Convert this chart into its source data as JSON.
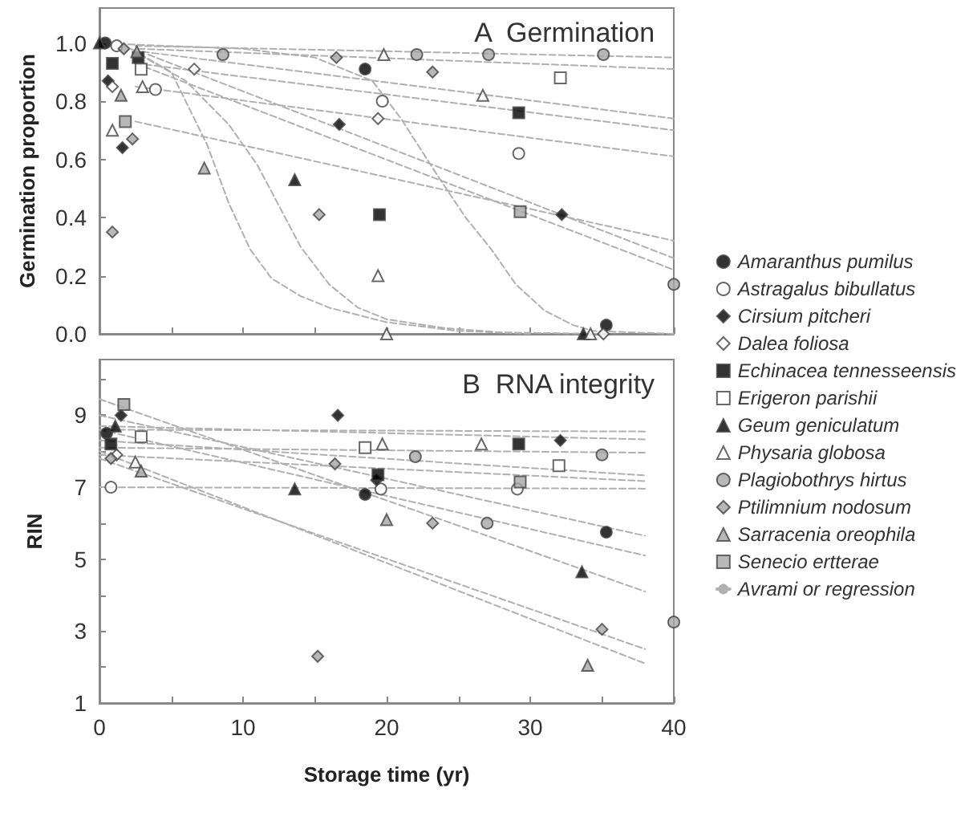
{
  "chart_data": [
    {
      "type": "scatter",
      "title": "A  Germination",
      "ylabel": "Germination proportion",
      "xlim": [
        0,
        40
      ],
      "ylim": [
        0,
        1.12
      ],
      "tick_labels": "y",
      "legend": false,
      "grid": false,
      "xticks": [
        {
          "value": 0,
          "label": null
        },
        {
          "value": 5,
          "label": null
        },
        {
          "value": 10,
          "label": null
        },
        {
          "value": 15,
          "label": null
        },
        {
          "value": 20,
          "label": null
        },
        {
          "value": 25,
          "label": null
        },
        {
          "value": 30,
          "label": null
        },
        {
          "value": 35,
          "label": null
        },
        {
          "value": 40,
          "label": null
        }
      ],
      "yticks": [
        {
          "value": 0,
          "label": "0.0"
        },
        {
          "value": 0.2,
          "label": "0.2"
        },
        {
          "value": 0.4,
          "label": "0.4"
        },
        {
          "value": 0.6,
          "label": "0.6"
        },
        {
          "value": 0.8,
          "label": "0.8"
        },
        {
          "value": 1,
          "label": "1.0"
        }
      ],
      "series": [
        {
          "type": "line",
          "line_style": "dashed",
          "color": "#b0b0b0",
          "x": [
            2.5,
            40
          ],
          "values": [
            0.99,
            0.95
          ]
        },
        {
          "type": "line",
          "line_style": "dashed",
          "color": "#b0b0b0",
          "x": [
            2.7,
            40
          ],
          "values": [
            0.98,
            0.91
          ]
        },
        {
          "type": "line",
          "line_style": "dashed",
          "color": "#b0b0b0",
          "x": [
            3,
            40
          ],
          "values": [
            0.97,
            0.74
          ]
        },
        {
          "type": "line",
          "line_style": "dashed",
          "color": "#b0b0b0",
          "x": [
            2.5,
            40
          ],
          "values": [
            0.93,
            0.7
          ]
        },
        {
          "type": "line",
          "line_style": "dashed",
          "color": "#b0b0b0",
          "x": [
            2.5,
            40
          ],
          "values": [
            0.85,
            0.61
          ]
        },
        {
          "type": "line",
          "line_style": "dashed",
          "color": "#b0b0b0",
          "x": [
            2.5,
            40
          ],
          "values": [
            0.73,
            0.32
          ]
        },
        {
          "type": "line",
          "line_style": "dashed",
          "color": "#b0b0b0",
          "x": [
            3.4,
            40
          ],
          "values": [
            0.96,
            0.26
          ]
        },
        {
          "type": "line",
          "line_style": "dashed",
          "color": "#b0b0b0",
          "x": [
            2.5,
            40
          ],
          "values": [
            0.93,
            0.22
          ]
        },
        {
          "type": "line",
          "line_style": "dashed",
          "color": "#b0b0b0",
          "x": [
            2.2,
            5,
            7.5,
            9,
            10.5,
            12,
            14,
            16,
            20,
            25,
            30
          ],
          "values": [
            0.98,
            0.9,
            0.65,
            0.45,
            0.29,
            0.19,
            0.13,
            0.09,
            0.04,
            0.01,
            0
          ]
        },
        {
          "type": "line",
          "line_style": "dashed",
          "color": "#b0b0b0",
          "x": [
            2.8,
            6,
            9,
            11,
            12.4,
            14,
            16,
            18,
            20,
            24,
            28,
            35
          ],
          "values": [
            0.96,
            0.87,
            0.72,
            0.58,
            0.45,
            0.3,
            0.17,
            0.09,
            0.05,
            0.02,
            0.005,
            0
          ]
        },
        {
          "type": "line",
          "line_style": "dashed",
          "color": "#b0b0b0",
          "x": [
            2,
            10,
            15,
            19,
            21,
            23.6,
            25.5,
            27.3,
            29,
            31,
            33,
            34.4,
            40
          ],
          "values": [
            0.995,
            0.98,
            0.95,
            0.87,
            0.74,
            0.54,
            0.4,
            0.29,
            0.17,
            0.08,
            0.03,
            0.01,
            0
          ]
        },
        {
          "type": "scatter",
          "marker": "circle",
          "color": "#000000",
          "x": [
            0.4,
            18.5,
            35.3
          ],
          "values": [
            1.0,
            0.91,
            0.03
          ]
        },
        {
          "type": "scatter",
          "marker": "circle",
          "color": "#ffffff",
          "x": [
            1.2,
            3.9,
            19.7,
            29.2
          ],
          "values": [
            0.99,
            0.84,
            0.8,
            0.62
          ]
        },
        {
          "type": "scatter",
          "marker": "diamond",
          "color": "#000000",
          "x": [
            0.6,
            1.6,
            16.7,
            32.2
          ],
          "values": [
            0.87,
            0.64,
            0.72,
            0.41
          ]
        },
        {
          "type": "scatter",
          "marker": "diamond",
          "color": "#ffffff",
          "x": [
            0.9,
            6.6,
            19.4,
            35.1
          ],
          "values": [
            0.85,
            0.91,
            0.74,
            0
          ]
        },
        {
          "type": "scatter",
          "marker": "square",
          "color": "#000000",
          "x": [
            0.9,
            2.7,
            19.5,
            29.2
          ],
          "values": [
            0.93,
            0.95,
            0.41,
            0.76
          ]
        },
        {
          "type": "scatter",
          "marker": "square",
          "color": "#ffffff",
          "x": [
            2.9,
            32.1
          ],
          "values": [
            0.91,
            0.88
          ]
        },
        {
          "type": "scatter",
          "marker": "triangle",
          "color": "#000000",
          "x": [
            0,
            13.6,
            33.7
          ],
          "values": [
            1.0,
            0.53,
            0
          ]
        },
        {
          "type": "scatter",
          "marker": "triangle",
          "color": "#ffffff",
          "x": [
            0.9,
            3.0,
            19.8,
            19.4,
            20.0,
            26.7,
            34.2
          ],
          "values": [
            0.7,
            0.85,
            0.96,
            0.2,
            0,
            0.82,
            0
          ]
        },
        {
          "type": "scatter",
          "marker": "circle",
          "color": "#a6a6a6",
          "x": [
            8.6,
            22.1,
            27.1,
            35.1,
            40
          ],
          "values": [
            0.96,
            0.96,
            0.96,
            0.96,
            0.17
          ]
        },
        {
          "type": "scatter",
          "marker": "diamond",
          "color": "#a6a6a6",
          "x": [
            0.9,
            2.3,
            16.5,
            15.3,
            23.2,
            1.7
          ],
          "values": [
            0.35,
            0.67,
            0.95,
            0.41,
            0.9,
            0.98
          ]
        },
        {
          "type": "scatter",
          "marker": "triangle",
          "color": "#a6a6a6",
          "x": [
            1.5,
            7.3,
            2.6
          ],
          "values": [
            0.82,
            0.57,
            0.97
          ]
        },
        {
          "type": "scatter",
          "marker": "square",
          "color": "#a6a6a6",
          "x": [
            1.8,
            29.3
          ],
          "values": [
            0.73,
            0.42
          ]
        }
      ]
    },
    {
      "type": "scatter",
      "title": "B  RNA integrity",
      "xlabel": "Storage time (yr)",
      "ylabel": "RIN",
      "xlim": [
        0,
        40
      ],
      "ylim": [
        1,
        10.55
      ],
      "legend": "right",
      "grid": false,
      "xticks": [
        0,
        {
          "value": 5,
          "label": null
        },
        10,
        {
          "value": 15,
          "label": null
        },
        20,
        {
          "value": 25,
          "label": null
        },
        30,
        {
          "value": 35,
          "label": null
        },
        40
      ],
      "yticks": [
        1,
        {
          "value": 2,
          "label": null
        },
        3,
        {
          "value": 4,
          "label": null
        },
        5,
        {
          "value": 6,
          "label": null
        },
        7,
        {
          "value": 8,
          "label": null
        },
        9,
        {
          "value": 10,
          "label": null
        }
      ],
      "series": [
        {
          "name": "Amaranthus pumilus",
          "type": "scatter",
          "marker": "circle",
          "color": "#000000",
          "x": [
            0.5,
            18.5,
            35.3
          ],
          "values": [
            8.5,
            6.8,
            5.75
          ]
        },
        {
          "name": "Astragalus bibullatus",
          "type": "scatter",
          "marker": "circle",
          "color": "#ffffff",
          "x": [
            0.8,
            19.6,
            29.1
          ],
          "values": [
            7.0,
            6.95,
            6.95
          ]
        },
        {
          "name": "Cirsium pitcheri",
          "type": "scatter",
          "marker": "diamond",
          "color": "#000000",
          "x": [
            1.5,
            16.6,
            19.3,
            32.1
          ],
          "values": [
            9.0,
            9.0,
            7.2,
            8.3
          ]
        },
        {
          "name": "Dalea foliosa",
          "type": "scatter",
          "marker": "diamond",
          "color": "#ffffff",
          "x": [
            1.2
          ],
          "values": [
            7.9
          ]
        },
        {
          "name": "Echinacea tennesseensis",
          "type": "scatter",
          "marker": "square",
          "color": "#000000",
          "x": [
            0.8,
            19.4,
            29.2
          ],
          "values": [
            8.2,
            7.35,
            8.2
          ]
        },
        {
          "name": "Erigeron parishii",
          "type": "scatter",
          "marker": "square",
          "color": "#ffffff",
          "x": [
            2.9,
            18.5,
            32.0
          ],
          "values": [
            8.4,
            8.1,
            7.6
          ]
        },
        {
          "name": "Geum geniculatum",
          "type": "scatter",
          "marker": "triangle",
          "color": "#000000",
          "x": [
            1.1,
            13.6,
            33.6
          ],
          "values": [
            8.7,
            6.95,
            4.65
          ]
        },
        {
          "name": "Physaria globosa",
          "type": "scatter",
          "marker": "triangle",
          "color": "#ffffff",
          "x": [
            2.5,
            19.7,
            26.6
          ],
          "values": [
            7.7,
            8.2,
            8.2
          ]
        },
        {
          "name": "Plagiobothrys hirtus",
          "type": "scatter",
          "marker": "circle",
          "color": "#a6a6a6",
          "x": [
            22.0,
            27.0,
            35.0,
            40
          ],
          "values": [
            7.85,
            6.0,
            7.9,
            3.25
          ]
        },
        {
          "name": "Ptilimnium nodosum",
          "type": "scatter",
          "marker": "diamond",
          "color": "#a6a6a6",
          "x": [
            0.8,
            16.4,
            15.2,
            23.2,
            35.0
          ],
          "values": [
            7.8,
            7.65,
            2.3,
            6.0,
            3.05
          ]
        },
        {
          "name": "Sarracenia oreophila",
          "type": "scatter",
          "marker": "triangle",
          "color": "#a6a6a6",
          "x": [
            2.9,
            20.0,
            34.0
          ],
          "values": [
            7.45,
            6.1,
            2.05
          ]
        },
        {
          "name": "Senecio ertterae",
          "type": "scatter",
          "marker": "square",
          "color": "#a6a6a6",
          "x": [
            1.7,
            29.3
          ],
          "values": [
            9.3,
            7.15
          ]
        },
        {
          "name": "Avrami or regression",
          "type": "line",
          "line_style": "dashed",
          "color": "#b0b0b0",
          "x": [
            0,
            38
          ],
          "values": [
            8.6,
            8.55
          ]
        },
        {
          "type": "line",
          "line_style": "dashed",
          "color": "#b0b0b0",
          "x": [
            0,
            38
          ],
          "values": [
            8.7,
            8.33
          ]
        },
        {
          "type": "line",
          "line_style": "dashed",
          "color": "#b0b0b0",
          "x": [
            0,
            38
          ],
          "values": [
            8.1,
            7.96
          ]
        },
        {
          "type": "line",
          "line_style": "dashed",
          "color": "#b0b0b0",
          "x": [
            0,
            38
          ],
          "values": [
            8.3,
            7.33
          ]
        },
        {
          "type": "line",
          "line_style": "dashed",
          "color": "#b0b0b0",
          "x": [
            0,
            38
          ],
          "values": [
            7.9,
            7.17
          ]
        },
        {
          "type": "line",
          "line_style": "dashed",
          "color": "#b0b0b0",
          "x": [
            0,
            38
          ],
          "values": [
            7.0,
            6.96
          ]
        },
        {
          "type": "line",
          "line_style": "dashed",
          "color": "#b0b0b0",
          "x": [
            0,
            38
          ],
          "values": [
            9.0,
            5.65
          ]
        },
        {
          "type": "line",
          "line_style": "dashed",
          "color": "#b0b0b0",
          "x": [
            0,
            38
          ],
          "values": [
            8.6,
            5.1
          ]
        },
        {
          "type": "line",
          "line_style": "dashed",
          "color": "#b0b0b0",
          "x": [
            0,
            38
          ],
          "values": [
            9.45,
            4.1
          ]
        },
        {
          "type": "line",
          "line_style": "dashed",
          "color": "#b0b0b0",
          "x": [
            0,
            38
          ],
          "values": [
            7.8,
            2.5
          ]
        },
        {
          "type": "line",
          "line_style": "dashed",
          "color": "#b0b0b0",
          "x": [
            0,
            38
          ],
          "values": [
            8.0,
            2.1
          ]
        }
      ]
    }
  ]
}
